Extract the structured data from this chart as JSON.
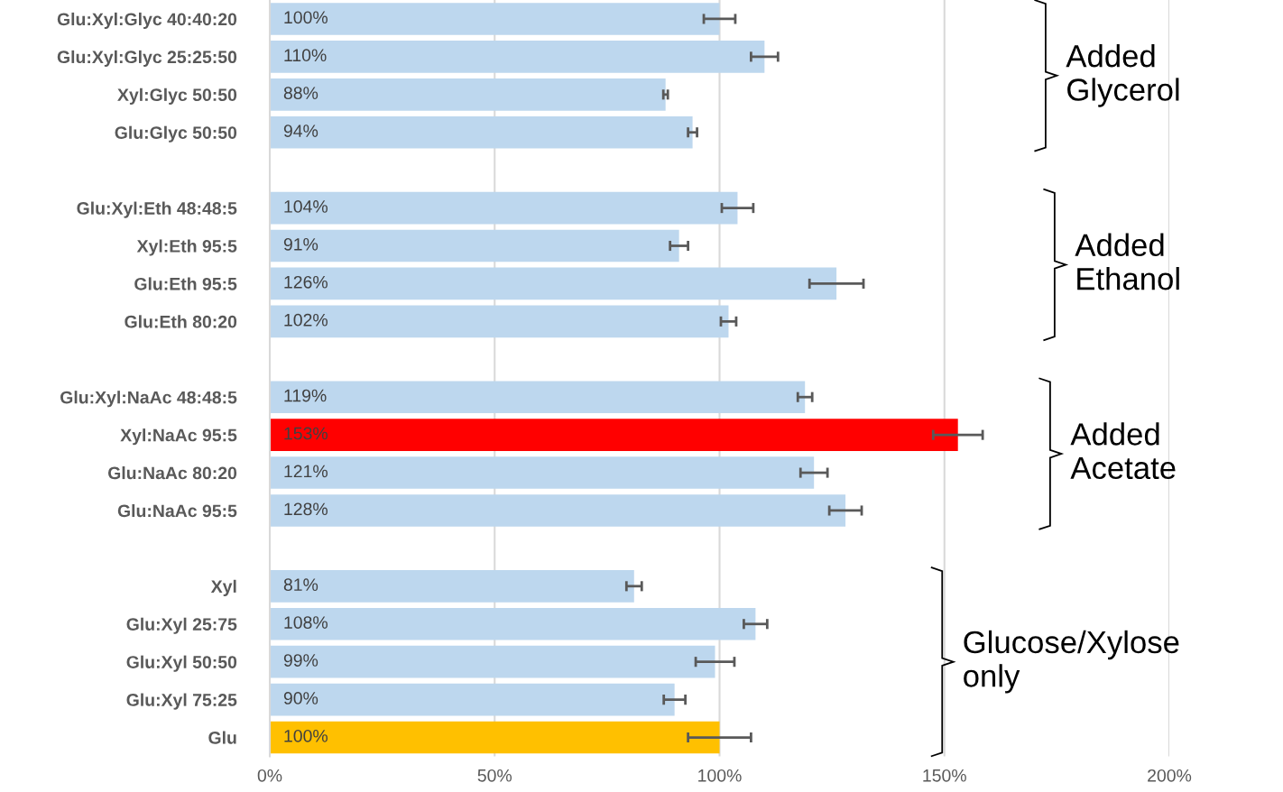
{
  "chart_data": {
    "type": "bar",
    "orientation": "horizontal",
    "categories": [
      "Glu:Xyl:Glyc 40:40:20",
      "Glu:Xyl:Glyc 25:25:50",
      "Xyl:Glyc 50:50",
      "Glu:Glyc 50:50",
      null,
      "Glu:Xyl:Eth 48:48:5",
      "Xyl:Eth 95:5",
      "Glu:Eth 95:5",
      "Glu:Eth 80:20",
      null,
      "Glu:Xyl:NaAc 48:48:5",
      "Xyl:NaAc 95:5",
      "Glu:NaAc 80:20",
      "Glu:NaAc 95:5",
      null,
      "Xyl",
      "Glu:Xyl 25:75",
      "Glu:Xyl 50:50",
      "Glu:Xyl 75:25",
      "Glu"
    ],
    "values": [
      100,
      110,
      88,
      94,
      null,
      104,
      91,
      126,
      102,
      null,
      119,
      153,
      121,
      128,
      null,
      81,
      108,
      99,
      90,
      100
    ],
    "errors": [
      3.5,
      3,
      0.5,
      1,
      null,
      3.5,
      2,
      6,
      1.7,
      null,
      1.6,
      5.5,
      3,
      3.6,
      null,
      1.7,
      2.6,
      4.3,
      2.4,
      7
    ],
    "value_labels": [
      "100%",
      "110%",
      "88%",
      "94%",
      null,
      "104%",
      "91%",
      "126%",
      "102%",
      null,
      "119%",
      "153%",
      "121%",
      "128%",
      null,
      "81%",
      "108%",
      "99%",
      "90%",
      "100%"
    ],
    "colors": [
      "#bdd7ee",
      "#bdd7ee",
      "#bdd7ee",
      "#bdd7ee",
      null,
      "#bdd7ee",
      "#bdd7ee",
      "#bdd7ee",
      "#bdd7ee",
      null,
      "#bdd7ee",
      "#ff0000",
      "#bdd7ee",
      "#bdd7ee",
      null,
      "#bdd7ee",
      "#bdd7ee",
      "#bdd7ee",
      "#bdd7ee",
      "#ffc000"
    ],
    "xlim": [
      0,
      200
    ],
    "xticks": [
      {
        "value": 0,
        "label": "0%"
      },
      {
        "value": 50,
        "label": "50%"
      },
      {
        "value": 100,
        "label": "100%"
      },
      {
        "value": 150,
        "label": "150%"
      },
      {
        "value": 200,
        "label": "200%"
      }
    ],
    "grid": "x",
    "annotations": [
      "Added\nGlycerol",
      "Added\nEthanol",
      "Added\nAcetate",
      "Glucose/Xylose\nonly"
    ]
  }
}
